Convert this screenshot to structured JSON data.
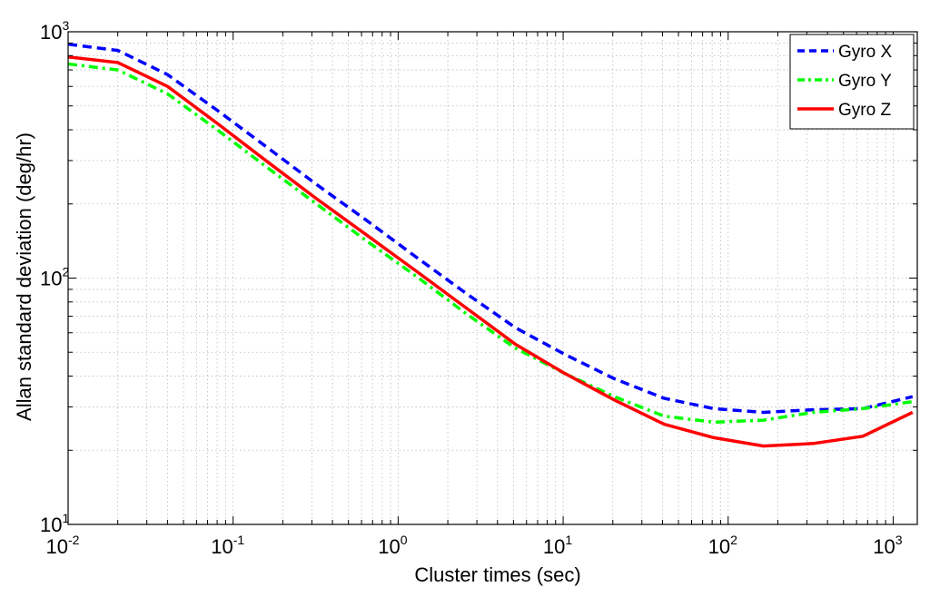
{
  "chart_data": {
    "type": "line",
    "title": "",
    "xlabel": "Cluster times (sec)",
    "ylabel": "Allan standard deviation (deg/hr)",
    "xscale": "log",
    "yscale": "log",
    "xlim": [
      0.01,
      1400
    ],
    "ylim": [
      10,
      1000
    ],
    "grid": true,
    "legend_position": "top-right",
    "x_ticks": [
      {
        "base": "10",
        "exp": "-2",
        "value": 0.01
      },
      {
        "base": "10",
        "exp": "-1",
        "value": 0.1
      },
      {
        "base": "10",
        "exp": "0",
        "value": 1
      },
      {
        "base": "10",
        "exp": "1",
        "value": 10
      },
      {
        "base": "10",
        "exp": "2",
        "value": 100
      },
      {
        "base": "10",
        "exp": "3",
        "value": 1000
      }
    ],
    "y_ticks": [
      {
        "base": "10",
        "exp": "1",
        "value": 10
      },
      {
        "base": "10",
        "exp": "2",
        "value": 100
      },
      {
        "base": "10",
        "exp": "3",
        "value": 1000
      }
    ],
    "series": [
      {
        "name": "Gyro X",
        "color": "#0000ff",
        "style": "dashed",
        "x": [
          0.01,
          0.02,
          0.04,
          0.08,
          0.16,
          0.32,
          0.64,
          1.28,
          2.56,
          5.12,
          10.24,
          20.48,
          40.96,
          81.92,
          163.84,
          327.68,
          655.36,
          1310.72
        ],
        "y": [
          890,
          840,
          670,
          480,
          340,
          240,
          172,
          122,
          87,
          63,
          49,
          39,
          32.5,
          29.5,
          28.5,
          29.2,
          29.5,
          33
        ]
      },
      {
        "name": "Gyro Y",
        "color": "#00ff00",
        "style": "dash-dot",
        "x": [
          0.01,
          0.02,
          0.04,
          0.08,
          0.16,
          0.32,
          0.64,
          1.28,
          2.56,
          5.12,
          10.24,
          20.48,
          40.96,
          81.92,
          163.84,
          327.68,
          655.36,
          1310.72
        ],
        "y": [
          740,
          700,
          560,
          400,
          282,
          200,
          142,
          102,
          72,
          52,
          41,
          33,
          27.5,
          26,
          26.5,
          28.5,
          29.5,
          31.5
        ]
      },
      {
        "name": "Gyro Z",
        "color": "#ff0000",
        "style": "solid",
        "x": [
          0.01,
          0.02,
          0.04,
          0.08,
          0.16,
          0.32,
          0.64,
          1.28,
          2.56,
          5.12,
          10.24,
          20.48,
          40.96,
          81.92,
          163.84,
          327.68,
          655.36,
          1310.72
        ],
        "y": [
          790,
          750,
          600,
          425,
          298,
          210,
          150,
          107,
          76,
          54,
          41,
          32,
          25.5,
          22.5,
          20.8,
          21.3,
          22.8,
          28.5
        ]
      }
    ]
  }
}
